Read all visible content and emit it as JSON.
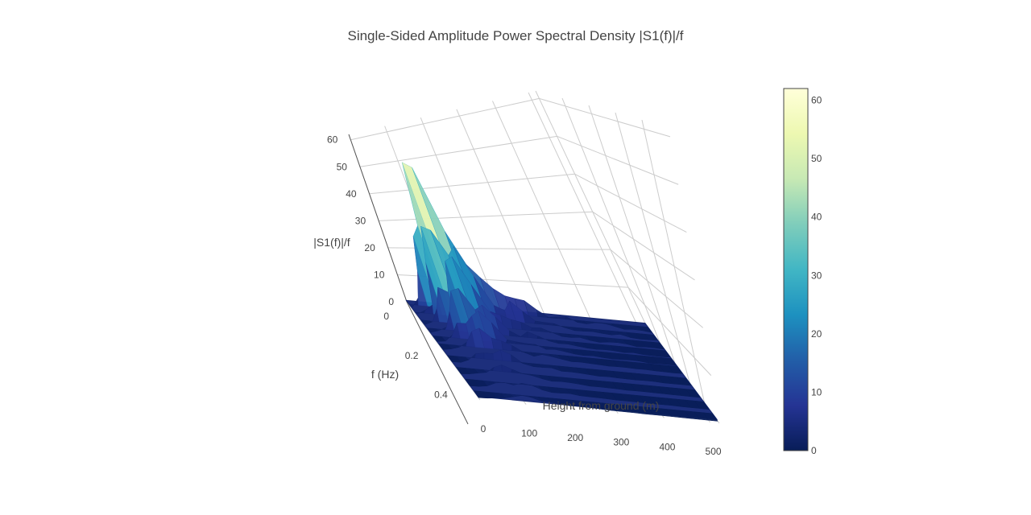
{
  "chart_data": {
    "type": "surface",
    "title": "Single-Sided Amplitude Power Spectral Density |S1(f)|/f",
    "axes": {
      "x": {
        "label": "Height from ground (m)",
        "range": [
          0,
          520
        ],
        "ticks": [
          0,
          100,
          200,
          300,
          400,
          500
        ]
      },
      "y": {
        "label": "f (Hz)",
        "range": [
          0,
          0.5
        ],
        "ticks": [
          0,
          0.2,
          0.4
        ]
      },
      "z": {
        "label": "|S1(f)|/f",
        "range": [
          0,
          62
        ],
        "ticks": [
          0,
          10,
          20,
          30,
          40,
          50,
          60
        ]
      }
    },
    "grid": true,
    "colorscale": {
      "name": "YlGnBu",
      "stops": [
        "#081d58",
        "#253494",
        "#225ea8",
        "#1d91c0",
        "#41b6c4",
        "#7fcdbb",
        "#c7e9b4",
        "#edf8b1",
        "#ffffd9"
      ],
      "range": [
        0,
        62
      ],
      "ticks": [
        0,
        10,
        20,
        30,
        40,
        50,
        60
      ],
      "position": "right"
    },
    "surface_profile": {
      "heights_m": [
        0,
        20,
        40,
        60,
        80,
        100,
        120,
        140,
        160,
        180,
        200,
        220,
        240,
        260,
        280,
        300,
        320,
        340,
        360,
        380,
        400,
        420,
        440,
        460,
        480,
        500,
        520
      ],
      "max_value": [
        3,
        6,
        15,
        34,
        48,
        56,
        52,
        40,
        24,
        14,
        11,
        13,
        9,
        7,
        5,
        4,
        3,
        3,
        2,
        2,
        2,
        2,
        2,
        1,
        1,
        1,
        1
      ]
    }
  }
}
